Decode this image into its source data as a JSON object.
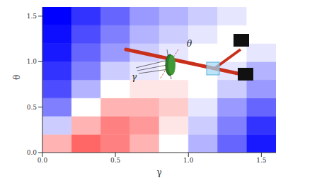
{
  "chart_data": {
    "type": "heatmap",
    "xlabel": "γ",
    "ylabel": "θ",
    "xlim": [
      0,
      1.6
    ],
    "ylim": [
      0,
      1.6
    ],
    "xticks": [
      {
        "value": 0,
        "label": "0.0"
      },
      {
        "value": 0.5,
        "label": "0.5"
      },
      {
        "value": 1,
        "label": "1.0"
      },
      {
        "value": 1.5,
        "label": "1.5"
      }
    ],
    "yticks": [
      {
        "value": 0,
        "label": "0.0"
      },
      {
        "value": 0.5,
        "label": "0.5"
      },
      {
        "value": 1,
        "label": "1.0"
      },
      {
        "value": 1.5,
        "label": "1.5"
      }
    ],
    "x": [
      0.1,
      0.3,
      0.5,
      0.7,
      0.9,
      1.1,
      1.3,
      1.5
    ],
    "y": [
      0.1,
      0.3,
      0.5,
      0.7,
      0.9,
      1.1,
      1.3,
      1.5
    ],
    "cells": [
      [
        0.3,
        0.6,
        0.5,
        0.3,
        0.0,
        -0.3,
        -0.6,
        -0.9
      ],
      [
        -0.2,
        0.3,
        0.5,
        0.4,
        0.1,
        -0.2,
        -0.5,
        -0.8
      ],
      [
        -0.5,
        0.0,
        0.3,
        0.3,
        0.2,
        -0.1,
        -0.4,
        -0.6
      ],
      [
        -0.7,
        -0.3,
        0.0,
        0.1,
        0.1,
        0.0,
        -0.2,
        -0.4
      ],
      [
        -0.8,
        -0.5,
        -0.2,
        -0.1,
        0.0,
        0.0,
        -0.1,
        -0.3
      ],
      [
        -0.9,
        -0.6,
        -0.4,
        -0.2,
        -0.1,
        0.0,
        0.0,
        -0.1
      ],
      [
        -0.95,
        -0.7,
        -0.5,
        -0.3,
        -0.2,
        -0.1,
        0.0,
        0.0
      ],
      [
        -1,
        -0.8,
        -0.6,
        -0.4,
        -0.3,
        -0.2,
        -0.1,
        0.0
      ]
    ],
    "color_range": [
      -1,
      1
    ],
    "annotations": [
      "γ",
      "θ"
    ]
  }
}
